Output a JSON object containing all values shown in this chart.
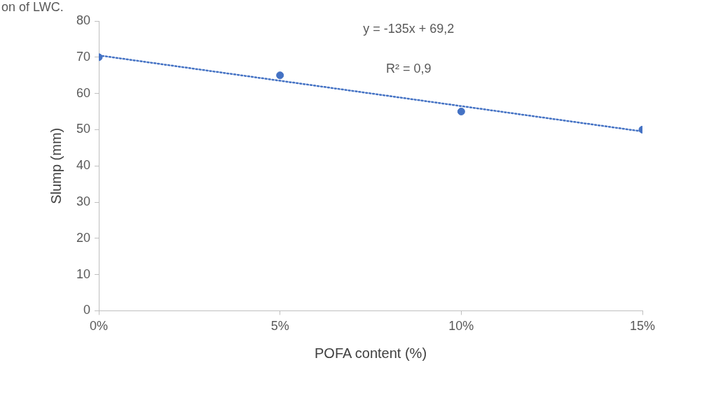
{
  "chart_data": {
    "type": "scatter",
    "xlabel": "POFA content (%)",
    "ylabel": "Slump (mm)",
    "xlim": [
      0,
      15
    ],
    "xticks": [
      {
        "value": 0,
        "label": "0%"
      },
      {
        "value": 5,
        "label": "5%"
      },
      {
        "value": 10,
        "label": "10%"
      },
      {
        "value": 15,
        "label": "15%"
      }
    ],
    "ylim": [
      0,
      80
    ],
    "yticks": [
      0,
      10,
      20,
      30,
      40,
      50,
      60,
      70,
      80
    ],
    "grid": false,
    "legend": false,
    "series": [
      {
        "type": "scatter",
        "marker": "circle",
        "color": "#4472c4",
        "x": [
          0,
          5,
          10,
          15
        ],
        "values": [
          70,
          65,
          55,
          50
        ]
      },
      {
        "type": "line",
        "marker": "none",
        "line_style": "dotted",
        "color": "#4472c4",
        "x": [
          0,
          15
        ],
        "values": [
          70.5,
          49.5
        ]
      }
    ],
    "annotations": [
      "on of LWC.",
      "y = -135x + 69,2",
      "R² = 0,9"
    ]
  }
}
